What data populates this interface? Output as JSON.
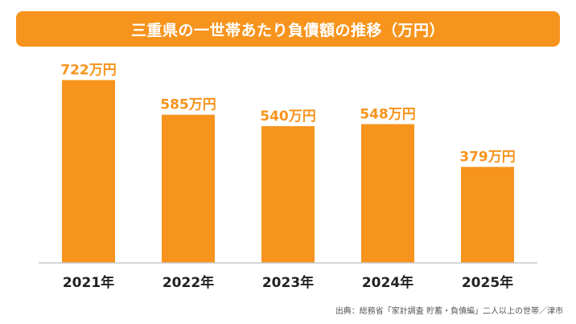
{
  "colors": {
    "accent": "#F7941D",
    "text": "#222222",
    "axis": "#c8c8c8"
  },
  "chart_data": {
    "type": "bar",
    "title": "三重県の一世帯あたり負債額の推移（万円）",
    "categories": [
      "2021年",
      "2022年",
      "2023年",
      "2024年",
      "2025年"
    ],
    "values": [
      722,
      585,
      540,
      548,
      379
    ],
    "value_unit": "万円",
    "ylim": [
      0,
      800
    ],
    "grid": false,
    "legend": "none",
    "source": "出典：総務省「家計調査 貯蓄・負債編」二人以上の世帯／津市"
  }
}
